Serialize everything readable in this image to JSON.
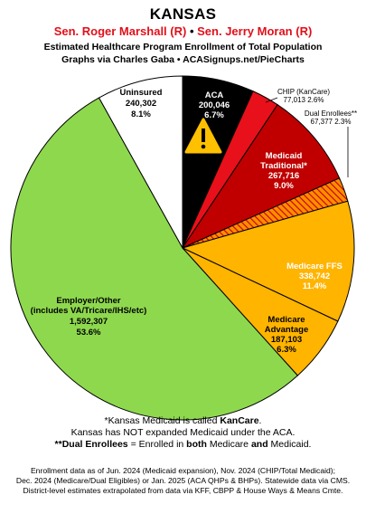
{
  "header": {
    "title": "KANSAS",
    "senator1": "Sen. Roger Marshall (R)",
    "bullet": "•",
    "senator2": "Sen. Jerry Moran (R)",
    "subtitle1": "Estimated Healthcare Program Enrollment of Total Population",
    "subtitle2": "Graphs via Charles Gaba  •  ACASignups.net/PieCharts"
  },
  "chart_data": {
    "type": "pie",
    "title": "KANSAS",
    "slices": [
      {
        "label": "ACA",
        "value": 200046,
        "value_text": "200,046",
        "percent": "6.7%",
        "color": "#000000",
        "text_color": "#ffffff"
      },
      {
        "label": "CHIP (KanCare)",
        "value": 77013,
        "value_text": "77,013",
        "percent": "2.6%",
        "color": "#e8101a",
        "text_color": "#ffffff"
      },
      {
        "label": "Medicaid Traditional*",
        "value": 267716,
        "value_text": "267,716",
        "percent": "9.0%",
        "color": "#c00000",
        "text_color": "#ffffff"
      },
      {
        "label": "Dual Enrollees**",
        "value": 67377,
        "value_text": "67,377",
        "percent": "2.3%",
        "color": "#ff8c00",
        "text_color": "#000000"
      },
      {
        "label": "Medicare FFS",
        "value": 338742,
        "value_text": "338,742",
        "percent": "11.4%",
        "color": "#ffb400",
        "text_color": "#ffffff"
      },
      {
        "label": "Medicare Advantage",
        "value": 187103,
        "value_text": "187,103",
        "percent": "6.3%",
        "color": "#ffb400",
        "text_color": "#000000"
      },
      {
        "label": "Employer/Other (includes VA/Tricare/IHS/etc)",
        "value": 1592307,
        "value_text": "1,592,307",
        "percent": "53.6%",
        "color": "#8ed84e",
        "text_color": "#000000"
      },
      {
        "label": "Uninsured",
        "value": 240302,
        "value_text": "240,302",
        "percent": "8.1%",
        "color": "#ffffff",
        "text_color": "#000000"
      }
    ]
  },
  "labels": {
    "aca_name": "ACA",
    "aca_value": "200,046",
    "aca_pct": "6.7%",
    "chip_line": "CHIP (KanCare)",
    "chip_value_line": "77,013 2.6%",
    "dual_line": "Dual Enrollees**",
    "dual_value_line": "67,377 2.3%",
    "medicaid_line1": "Medicaid",
    "medicaid_line2": "Traditional*",
    "medicaid_value": "267,716",
    "medicaid_pct": "9.0%",
    "ffs_name": "Medicare FFS",
    "ffs_value": "338,742",
    "ffs_pct": "11.4%",
    "ma_line1": "Medicare",
    "ma_line2": "Advantage",
    "ma_value": "187,103",
    "ma_pct": "6.3%",
    "emp_line1": "Employer/Other",
    "emp_line2": "(includes VA/Tricare/IHS/etc)",
    "emp_value": "1,592,307",
    "emp_pct": "53.6%",
    "unins_name": "Uninsured",
    "unins_value": "240,302",
    "unins_pct": "8.1%"
  },
  "notes": {
    "line1_a": "*Kansas Medicaid is called ",
    "line1_b": "KanCare",
    "line1_c": ".",
    "line2": "Kansas has NOT expanded Medicaid under the ACA.",
    "line3_a": "**Dual Enrollees",
    "line3_b": " = Enrolled in ",
    "line3_c": "both",
    "line3_d": " Medicare ",
    "line3_e": "and",
    "line3_f": " Medicaid."
  },
  "footer": {
    "line1": "Enrollment data as of Jun. 2024 (Medicaid expansion), Nov. 2024 (CHIP/Total Medicaid);",
    "line2": "Dec. 2024 (Medicare/Dual Eligibles) or Jan. 2025 (ACA QHPs & BHPs). Statewide data via CMS.",
    "line3": "District-level estimates extrapolated from data via KFF, CBPP & House Ways & Means Cmte."
  },
  "icons": {
    "warning": "warning-triangle-icon"
  }
}
